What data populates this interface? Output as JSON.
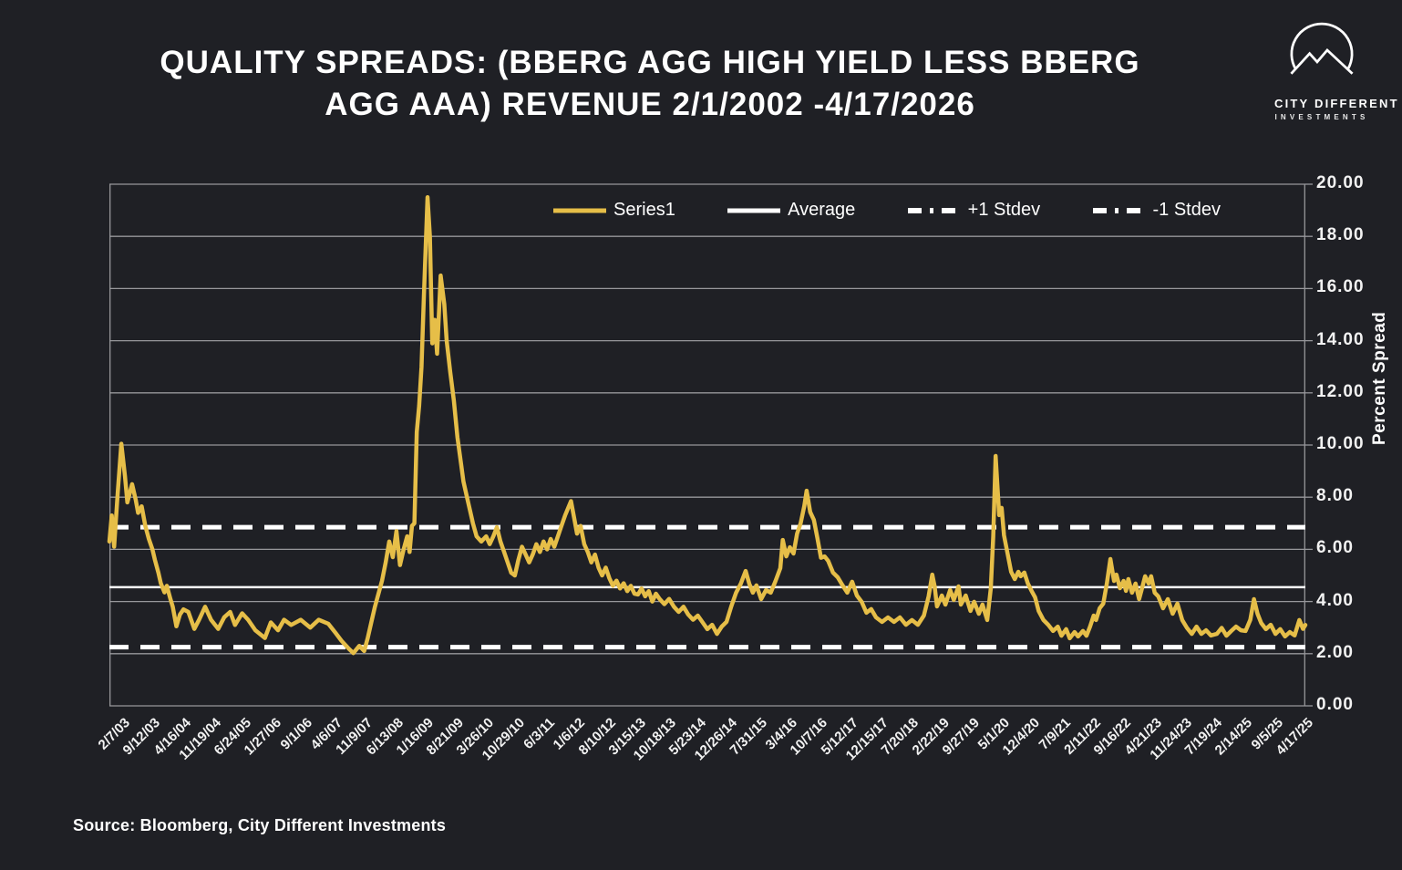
{
  "title": {
    "line1": "QUALITY SPREADS: (BBERG AGG HIGH YIELD LESS BBERG",
    "line2": "AGG AAA) REVENUE 2/1/2002 -4/17/2026"
  },
  "logo": {
    "name_line1": "CITY DIFFERENT",
    "name_line2": "INVESTMENTS"
  },
  "source": "Source: Bloomberg, City Different Investments",
  "colors": {
    "background": "#1f2025",
    "series_gold": "#e6be48",
    "grid": "#97979b",
    "text": "#ffffff",
    "reference": "#ffffff"
  },
  "chart_data": {
    "type": "line",
    "title": "QUALITY SPREADS: (BBERG AGG HIGH YIELD LESS BBERG AGG AAA) REVENUE 2/1/2002 -4/17/2026",
    "xlabel": "",
    "ylabel": "Percent Spread",
    "ylim": [
      0,
      20
    ],
    "ytick_labels": [
      "0.00",
      "2.00",
      "4.00",
      "6.00",
      "8.00",
      "10.00",
      "12.00",
      "14.00",
      "16.00",
      "18.00",
      "20.00"
    ],
    "grid": true,
    "legend_position": "top-center-inside",
    "legend": [
      {
        "label": "Series1",
        "style": "solid",
        "color": "#e6be48"
      },
      {
        "label": "Average",
        "style": "solid",
        "color": "#ffffff"
      },
      {
        "label": "+1 Stdev",
        "style": "dashed",
        "color": "#ffffff"
      },
      {
        "label": "-1 Stdev",
        "style": "dashed",
        "color": "#ffffff"
      }
    ],
    "reference_lines": {
      "average": 4.55,
      "plus1_stdev": 6.85,
      "minus1_stdev": 2.25
    },
    "x_tick_labels": [
      "2/7/03",
      "9/12/03",
      "4/16/04",
      "11/19/04",
      "6/24/05",
      "1/27/06",
      "9/1/06",
      "4/6/07",
      "11/9/07",
      "6/13/08",
      "1/16/09",
      "8/21/09",
      "3/26/10",
      "10/29/10",
      "6/3/11",
      "1/6/12",
      "8/10/12",
      "3/15/13",
      "10/18/13",
      "5/23/14",
      "12/26/14",
      "7/31/15",
      "3/4/16",
      "10/7/16",
      "5/12/17",
      "12/15/17",
      "7/20/18",
      "2/22/19",
      "9/27/19",
      "5/1/20",
      "12/4/20",
      "7/9/21",
      "2/11/22",
      "9/16/22",
      "4/21/23",
      "11/24/23",
      "7/19/24",
      "2/14/25",
      "9/5/25",
      "4/17/25"
    ],
    "series": {
      "name": "Series1",
      "color": "#e6be48",
      "samples_format": [
        "x_fraction_of_timeline",
        "percent_spread"
      ],
      "samples": [
        [
          0.0,
          6.3
        ],
        [
          0.002,
          7.3
        ],
        [
          0.004,
          6.1
        ],
        [
          0.007,
          8.2
        ],
        [
          0.01,
          10.05
        ],
        [
          0.013,
          8.8
        ],
        [
          0.015,
          7.8
        ],
        [
          0.019,
          8.5
        ],
        [
          0.022,
          7.9
        ],
        [
          0.024,
          7.4
        ],
        [
          0.027,
          7.65
        ],
        [
          0.03,
          6.9
        ],
        [
          0.033,
          6.4
        ],
        [
          0.036,
          6.0
        ],
        [
          0.038,
          5.6
        ],
        [
          0.041,
          5.1
        ],
        [
          0.043,
          4.7
        ],
        [
          0.046,
          4.35
        ],
        [
          0.048,
          4.6
        ],
        [
          0.051,
          4.1
        ],
        [
          0.053,
          3.8
        ],
        [
          0.056,
          3.05
        ],
        [
          0.059,
          3.5
        ],
        [
          0.062,
          3.7
        ],
        [
          0.066,
          3.6
        ],
        [
          0.071,
          2.95
        ],
        [
          0.075,
          3.3
        ],
        [
          0.08,
          3.8
        ],
        [
          0.085,
          3.3
        ],
        [
          0.091,
          2.95
        ],
        [
          0.096,
          3.4
        ],
        [
          0.101,
          3.6
        ],
        [
          0.105,
          3.1
        ],
        [
          0.111,
          3.55
        ],
        [
          0.116,
          3.3
        ],
        [
          0.122,
          2.9
        ],
        [
          0.13,
          2.6
        ],
        [
          0.135,
          3.2
        ],
        [
          0.141,
          2.9
        ],
        [
          0.146,
          3.3
        ],
        [
          0.152,
          3.1
        ],
        [
          0.16,
          3.3
        ],
        [
          0.168,
          3.0
        ],
        [
          0.175,
          3.3
        ],
        [
          0.183,
          3.15
        ],
        [
          0.189,
          2.8
        ],
        [
          0.194,
          2.5
        ],
        [
          0.2,
          2.2
        ],
        [
          0.204,
          2.02
        ],
        [
          0.209,
          2.3
        ],
        [
          0.213,
          2.1
        ],
        [
          0.216,
          2.6
        ],
        [
          0.219,
          3.2
        ],
        [
          0.222,
          3.8
        ],
        [
          0.225,
          4.3
        ],
        [
          0.228,
          4.8
        ],
        [
          0.231,
          5.5
        ],
        [
          0.234,
          6.3
        ],
        [
          0.237,
          5.7
        ],
        [
          0.24,
          6.7
        ],
        [
          0.243,
          5.4
        ],
        [
          0.246,
          6.0
        ],
        [
          0.249,
          6.5
        ],
        [
          0.251,
          5.9
        ],
        [
          0.253,
          6.9
        ],
        [
          0.255,
          7.0
        ],
        [
          0.257,
          10.5
        ],
        [
          0.259,
          11.5
        ],
        [
          0.261,
          13.0
        ],
        [
          0.263,
          15.8
        ],
        [
          0.266,
          19.5
        ],
        [
          0.268,
          18.0
        ],
        [
          0.27,
          13.9
        ],
        [
          0.272,
          14.8
        ],
        [
          0.274,
          13.5
        ],
        [
          0.277,
          16.5
        ],
        [
          0.28,
          15.4
        ],
        [
          0.282,
          14.0
        ],
        [
          0.285,
          12.8
        ],
        [
          0.288,
          11.7
        ],
        [
          0.291,
          10.3
        ],
        [
          0.294,
          9.3
        ],
        [
          0.296,
          8.6
        ],
        [
          0.299,
          8.0
        ],
        [
          0.301,
          7.6
        ],
        [
          0.304,
          7.0
        ],
        [
          0.307,
          6.5
        ],
        [
          0.311,
          6.3
        ],
        [
          0.315,
          6.5
        ],
        [
          0.318,
          6.2
        ],
        [
          0.321,
          6.5
        ],
        [
          0.324,
          6.85
        ],
        [
          0.327,
          6.3
        ],
        [
          0.33,
          5.9
        ],
        [
          0.333,
          5.5
        ],
        [
          0.336,
          5.1
        ],
        [
          0.339,
          5.0
        ],
        [
          0.342,
          5.6
        ],
        [
          0.345,
          6.1
        ],
        [
          0.348,
          5.8
        ],
        [
          0.351,
          5.5
        ],
        [
          0.354,
          5.8
        ],
        [
          0.357,
          6.2
        ],
        [
          0.36,
          5.9
        ],
        [
          0.363,
          6.3
        ],
        [
          0.366,
          6.0
        ],
        [
          0.369,
          6.4
        ],
        [
          0.372,
          6.1
        ],
        [
          0.375,
          6.5
        ],
        [
          0.378,
          6.9
        ],
        [
          0.381,
          7.3
        ],
        [
          0.386,
          7.85
        ],
        [
          0.389,
          7.1
        ],
        [
          0.391,
          6.6
        ],
        [
          0.394,
          6.9
        ],
        [
          0.397,
          6.2
        ],
        [
          0.4,
          5.9
        ],
        [
          0.403,
          5.5
        ],
        [
          0.406,
          5.8
        ],
        [
          0.409,
          5.3
        ],
        [
          0.412,
          5.0
        ],
        [
          0.415,
          5.3
        ],
        [
          0.418,
          4.9
        ],
        [
          0.421,
          4.6
        ],
        [
          0.424,
          4.8
        ],
        [
          0.427,
          4.5
        ],
        [
          0.43,
          4.7
        ],
        [
          0.433,
          4.4
        ],
        [
          0.436,
          4.6
        ],
        [
          0.439,
          4.3
        ],
        [
          0.442,
          4.27
        ],
        [
          0.445,
          4.5
        ],
        [
          0.448,
          4.2
        ],
        [
          0.451,
          4.4
        ],
        [
          0.454,
          4.0
        ],
        [
          0.457,
          4.3
        ],
        [
          0.46,
          4.1
        ],
        [
          0.464,
          3.9
        ],
        [
          0.468,
          4.1
        ],
        [
          0.472,
          3.8
        ],
        [
          0.476,
          3.6
        ],
        [
          0.48,
          3.8
        ],
        [
          0.484,
          3.5
        ],
        [
          0.488,
          3.3
        ],
        [
          0.492,
          3.46
        ],
        [
          0.496,
          3.2
        ],
        [
          0.5,
          2.94
        ],
        [
          0.504,
          3.11
        ],
        [
          0.508,
          2.76
        ],
        [
          0.512,
          3.04
        ],
        [
          0.516,
          3.22
        ],
        [
          0.52,
          3.81
        ],
        [
          0.524,
          4.34
        ],
        [
          0.528,
          4.69
        ],
        [
          0.532,
          5.17
        ],
        [
          0.535,
          4.69
        ],
        [
          0.538,
          4.34
        ],
        [
          0.541,
          4.62
        ],
        [
          0.545,
          4.09
        ],
        [
          0.549,
          4.44
        ],
        [
          0.553,
          4.34
        ],
        [
          0.557,
          4.79
        ],
        [
          0.561,
          5.28
        ],
        [
          0.563,
          6.36
        ],
        [
          0.566,
          5.73
        ],
        [
          0.569,
          6.08
        ],
        [
          0.572,
          5.84
        ],
        [
          0.575,
          6.6
        ],
        [
          0.578,
          7.0
        ],
        [
          0.581,
          7.66
        ],
        [
          0.583,
          8.25
        ],
        [
          0.586,
          7.43
        ],
        [
          0.589,
          7.13
        ],
        [
          0.592,
          6.43
        ],
        [
          0.595,
          5.68
        ],
        [
          0.598,
          5.73
        ],
        [
          0.601,
          5.56
        ],
        [
          0.605,
          5.11
        ],
        [
          0.609,
          4.93
        ],
        [
          0.613,
          4.62
        ],
        [
          0.617,
          4.34
        ],
        [
          0.621,
          4.76
        ],
        [
          0.625,
          4.23
        ],
        [
          0.629,
          3.99
        ],
        [
          0.633,
          3.57
        ],
        [
          0.637,
          3.71
        ],
        [
          0.641,
          3.39
        ],
        [
          0.646,
          3.22
        ],
        [
          0.651,
          3.39
        ],
        [
          0.656,
          3.22
        ],
        [
          0.661,
          3.39
        ],
        [
          0.666,
          3.11
        ],
        [
          0.671,
          3.29
        ],
        [
          0.676,
          3.11
        ],
        [
          0.681,
          3.46
        ],
        [
          0.685,
          4.2
        ],
        [
          0.688,
          5.03
        ],
        [
          0.69,
          4.58
        ],
        [
          0.692,
          3.81
        ],
        [
          0.696,
          4.23
        ],
        [
          0.699,
          3.88
        ],
        [
          0.703,
          4.44
        ],
        [
          0.706,
          4.06
        ],
        [
          0.71,
          4.58
        ],
        [
          0.712,
          3.88
        ],
        [
          0.716,
          4.23
        ],
        [
          0.72,
          3.64
        ],
        [
          0.723,
          3.99
        ],
        [
          0.727,
          3.53
        ],
        [
          0.73,
          3.88
        ],
        [
          0.734,
          3.29
        ],
        [
          0.737,
          4.5
        ],
        [
          0.739,
          6.5
        ],
        [
          0.741,
          9.58
        ],
        [
          0.744,
          7.31
        ],
        [
          0.746,
          7.59
        ],
        [
          0.748,
          6.54
        ],
        [
          0.751,
          5.84
        ],
        [
          0.754,
          5.14
        ],
        [
          0.757,
          4.86
        ],
        [
          0.76,
          5.14
        ],
        [
          0.762,
          4.97
        ],
        [
          0.765,
          5.11
        ],
        [
          0.768,
          4.69
        ],
        [
          0.771,
          4.41
        ],
        [
          0.774,
          4.16
        ],
        [
          0.777,
          3.64
        ],
        [
          0.781,
          3.29
        ],
        [
          0.785,
          3.11
        ],
        [
          0.789,
          2.87
        ],
        [
          0.793,
          3.04
        ],
        [
          0.796,
          2.69
        ],
        [
          0.8,
          2.94
        ],
        [
          0.803,
          2.59
        ],
        [
          0.807,
          2.83
        ],
        [
          0.81,
          2.66
        ],
        [
          0.814,
          2.87
        ],
        [
          0.817,
          2.69
        ],
        [
          0.82,
          3.04
        ],
        [
          0.823,
          3.46
        ],
        [
          0.825,
          3.29
        ],
        [
          0.828,
          3.74
        ],
        [
          0.831,
          3.92
        ],
        [
          0.834,
          4.69
        ],
        [
          0.837,
          5.63
        ],
        [
          0.84,
          4.79
        ],
        [
          0.842,
          5.03
        ],
        [
          0.845,
          4.51
        ],
        [
          0.848,
          4.79
        ],
        [
          0.85,
          4.41
        ],
        [
          0.852,
          4.86
        ],
        [
          0.855,
          4.34
        ],
        [
          0.858,
          4.69
        ],
        [
          0.861,
          4.09
        ],
        [
          0.863,
          4.44
        ],
        [
          0.866,
          4.97
        ],
        [
          0.869,
          4.69
        ],
        [
          0.871,
          4.97
        ],
        [
          0.874,
          4.34
        ],
        [
          0.877,
          4.2
        ],
        [
          0.881,
          3.74
        ],
        [
          0.885,
          4.09
        ],
        [
          0.889,
          3.53
        ],
        [
          0.893,
          3.92
        ],
        [
          0.897,
          3.29
        ],
        [
          0.901,
          2.99
        ],
        [
          0.905,
          2.76
        ],
        [
          0.909,
          3.04
        ],
        [
          0.913,
          2.76
        ],
        [
          0.917,
          2.9
        ],
        [
          0.921,
          2.7
        ],
        [
          0.926,
          2.76
        ],
        [
          0.93,
          2.99
        ],
        [
          0.934,
          2.69
        ],
        [
          0.938,
          2.87
        ],
        [
          0.942,
          3.04
        ],
        [
          0.946,
          2.9
        ],
        [
          0.95,
          2.87
        ],
        [
          0.954,
          3.3
        ],
        [
          0.957,
          4.09
        ],
        [
          0.96,
          3.53
        ],
        [
          0.963,
          3.18
        ],
        [
          0.967,
          2.94
        ],
        [
          0.971,
          3.11
        ],
        [
          0.975,
          2.76
        ],
        [
          0.979,
          2.94
        ],
        [
          0.983,
          2.66
        ],
        [
          0.987,
          2.83
        ],
        [
          0.991,
          2.7
        ],
        [
          0.995,
          3.29
        ],
        [
          0.998,
          2.95
        ],
        [
          1.0,
          3.1
        ]
      ]
    }
  }
}
